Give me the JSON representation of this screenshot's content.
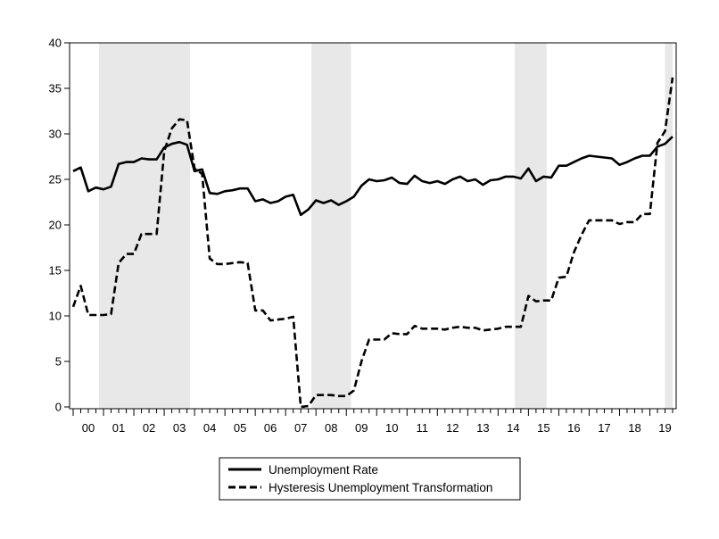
{
  "chart_data": {
    "type": "line",
    "title": "",
    "xlabel": "",
    "ylabel": "",
    "ylim": [
      0,
      40
    ],
    "y_ticks": [
      0,
      5,
      10,
      15,
      20,
      25,
      30,
      35,
      40
    ],
    "x_range": [
      2000.0,
      2019.75
    ],
    "x_tick_labels": [
      "00",
      "01",
      "02",
      "03",
      "04",
      "05",
      "06",
      "07",
      "08",
      "09",
      "10",
      "11",
      "12",
      "13",
      "14",
      "15",
      "16",
      "17",
      "18",
      "19"
    ],
    "grid": false,
    "legend_position": "bottom-center",
    "shaded_periods": [
      {
        "start": 2000.85,
        "end": 2003.85
      },
      {
        "start": 2007.85,
        "end": 2009.15
      },
      {
        "start": 2014.55,
        "end": 2015.6
      },
      {
        "start": 2019.5,
        "end": 2019.75
      }
    ],
    "series": [
      {
        "name": "Unemployment Rate",
        "style": "solid",
        "color": "#000000",
        "x": [
          2000.0,
          2000.25,
          2000.5,
          2000.75,
          2001.0,
          2001.25,
          2001.5,
          2001.75,
          2002.0,
          2002.25,
          2002.5,
          2002.75,
          2003.0,
          2003.25,
          2003.5,
          2003.75,
          2004.0,
          2004.25,
          2004.5,
          2004.75,
          2005.0,
          2005.25,
          2005.5,
          2005.75,
          2006.0,
          2006.25,
          2006.5,
          2006.75,
          2007.0,
          2007.25,
          2007.5,
          2007.75,
          2008.0,
          2008.25,
          2008.5,
          2008.75,
          2009.0,
          2009.25,
          2009.5,
          2009.75,
          2010.0,
          2010.25,
          2010.5,
          2010.75,
          2011.0,
          2011.25,
          2011.5,
          2011.75,
          2012.0,
          2012.25,
          2012.5,
          2012.75,
          2013.0,
          2013.25,
          2013.5,
          2013.75,
          2014.0,
          2014.25,
          2014.5,
          2014.75,
          2015.0,
          2015.25,
          2015.5,
          2015.75,
          2016.0,
          2016.25,
          2016.5,
          2016.75,
          2017.0,
          2017.25,
          2017.5,
          2017.75,
          2018.0,
          2018.25,
          2018.5,
          2018.75,
          2019.0,
          2019.25,
          2019.5,
          2019.75
        ],
        "values": [
          25.9,
          26.3,
          23.7,
          24.1,
          23.9,
          24.2,
          26.7,
          26.9,
          26.9,
          27.3,
          27.2,
          27.2,
          28.5,
          28.9,
          29.1,
          28.8,
          25.9,
          26.1,
          23.5,
          23.4,
          23.7,
          23.8,
          24.0,
          24.0,
          22.6,
          22.8,
          22.4,
          22.6,
          23.1,
          23.3,
          21.1,
          21.7,
          22.7,
          22.4,
          22.7,
          22.2,
          22.6,
          23.1,
          24.3,
          25.0,
          24.8,
          24.9,
          25.2,
          24.6,
          24.5,
          25.4,
          24.8,
          24.6,
          24.8,
          24.5,
          25.0,
          25.3,
          24.8,
          25.0,
          24.4,
          24.9,
          25.0,
          25.3,
          25.3,
          25.1,
          26.2,
          24.8,
          25.3,
          25.2,
          26.5,
          26.5,
          26.9,
          27.3,
          27.6,
          27.5,
          27.4,
          27.3,
          26.6,
          26.9,
          27.3,
          27.6,
          27.6,
          28.6,
          28.9,
          29.7
        ]
      },
      {
        "name": "Hysteresis Unemployment Transformation",
        "style": "dashed",
        "color": "#000000",
        "x": [
          2000.0,
          2000.25,
          2000.5,
          2000.75,
          2001.0,
          2001.25,
          2001.5,
          2001.75,
          2002.0,
          2002.25,
          2002.5,
          2002.75,
          2003.0,
          2003.25,
          2003.5,
          2003.75,
          2004.0,
          2004.25,
          2004.5,
          2004.75,
          2005.0,
          2005.25,
          2005.5,
          2005.75,
          2006.0,
          2006.25,
          2006.5,
          2006.75,
          2007.0,
          2007.25,
          2007.5,
          2007.75,
          2008.0,
          2008.25,
          2008.5,
          2008.75,
          2009.0,
          2009.25,
          2009.5,
          2009.75,
          2010.0,
          2010.25,
          2010.5,
          2010.75,
          2011.0,
          2011.25,
          2011.5,
          2011.75,
          2012.0,
          2012.25,
          2012.5,
          2012.75,
          2013.0,
          2013.25,
          2013.5,
          2013.75,
          2014.0,
          2014.25,
          2014.5,
          2014.75,
          2015.0,
          2015.25,
          2015.5,
          2015.75,
          2016.0,
          2016.25,
          2016.5,
          2016.75,
          2017.0,
          2017.25,
          2017.5,
          2017.75,
          2018.0,
          2018.25,
          2018.5,
          2018.75,
          2019.0,
          2019.25,
          2019.5,
          2019.75
        ],
        "values": [
          11.0,
          13.3,
          10.1,
          10.1,
          10.1,
          10.2,
          15.8,
          16.8,
          16.8,
          19.0,
          19.0,
          19.0,
          28.1,
          30.6,
          31.6,
          31.5,
          26.2,
          25.6,
          16.3,
          15.7,
          15.7,
          15.8,
          15.9,
          15.8,
          10.6,
          10.6,
          9.5,
          9.6,
          9.7,
          9.9,
          0.0,
          0.1,
          1.3,
          1.3,
          1.3,
          1.2,
          1.2,
          1.8,
          5.0,
          7.4,
          7.4,
          7.4,
          8.1,
          8.0,
          8.0,
          8.9,
          8.6,
          8.6,
          8.6,
          8.5,
          8.7,
          8.8,
          8.7,
          8.7,
          8.4,
          8.5,
          8.6,
          8.8,
          8.8,
          8.8,
          12.2,
          11.6,
          11.7,
          11.7,
          14.2,
          14.3,
          17.0,
          18.9,
          20.5,
          20.5,
          20.5,
          20.5,
          20.1,
          20.3,
          20.3,
          21.2,
          21.2,
          29.0,
          30.3,
          36.2
        ]
      }
    ]
  }
}
